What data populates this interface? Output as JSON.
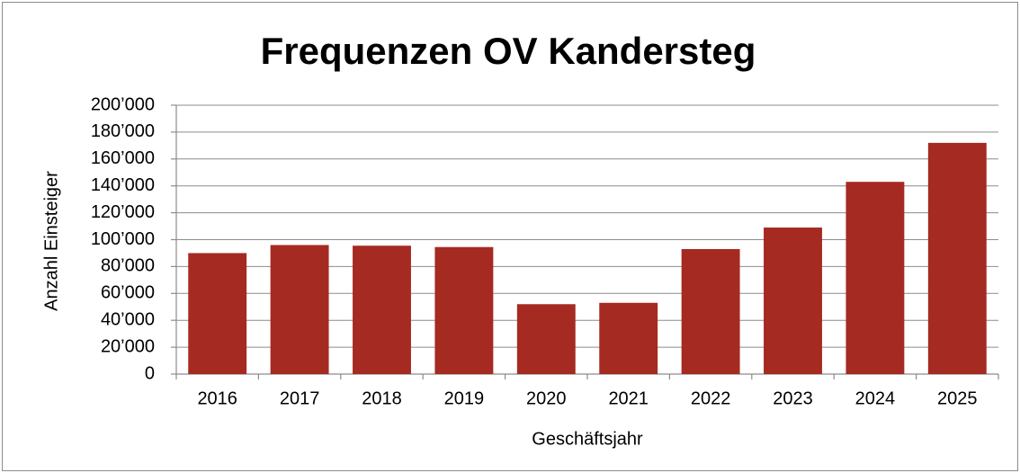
{
  "chart_data": {
    "type": "bar",
    "title": "Frequenzen OV Kandersteg",
    "x_label": "Geschäftsjahr",
    "y_label": "Anzahl Einsteiger",
    "categories": [
      "2016",
      "2017",
      "2018",
      "2019",
      "2020",
      "2021",
      "2022",
      "2023",
      "2024",
      "2025"
    ],
    "values": [
      90000,
      96000,
      95500,
      94500,
      52000,
      53000,
      93000,
      109000,
      143000,
      172000
    ],
    "color": "#a52a22",
    "ylim": [
      0,
      200000
    ],
    "yticks": [
      0,
      {
        "value": 20000,
        "label": "20’000"
      },
      {
        "value": 40000,
        "label": "40’000"
      },
      {
        "value": 60000,
        "label": "60’000"
      },
      {
        "value": 80000,
        "label": "80’000"
      },
      {
        "value": 100000,
        "label": "100’000"
      },
      {
        "value": 120000,
        "label": "120’000"
      },
      {
        "value": 140000,
        "label": "140’000"
      },
      {
        "value": 160000,
        "label": "160’000"
      },
      {
        "value": 180000,
        "label": "180’000"
      },
      {
        "value": 200000,
        "label": "200’000"
      }
    ],
    "grid": true
  }
}
